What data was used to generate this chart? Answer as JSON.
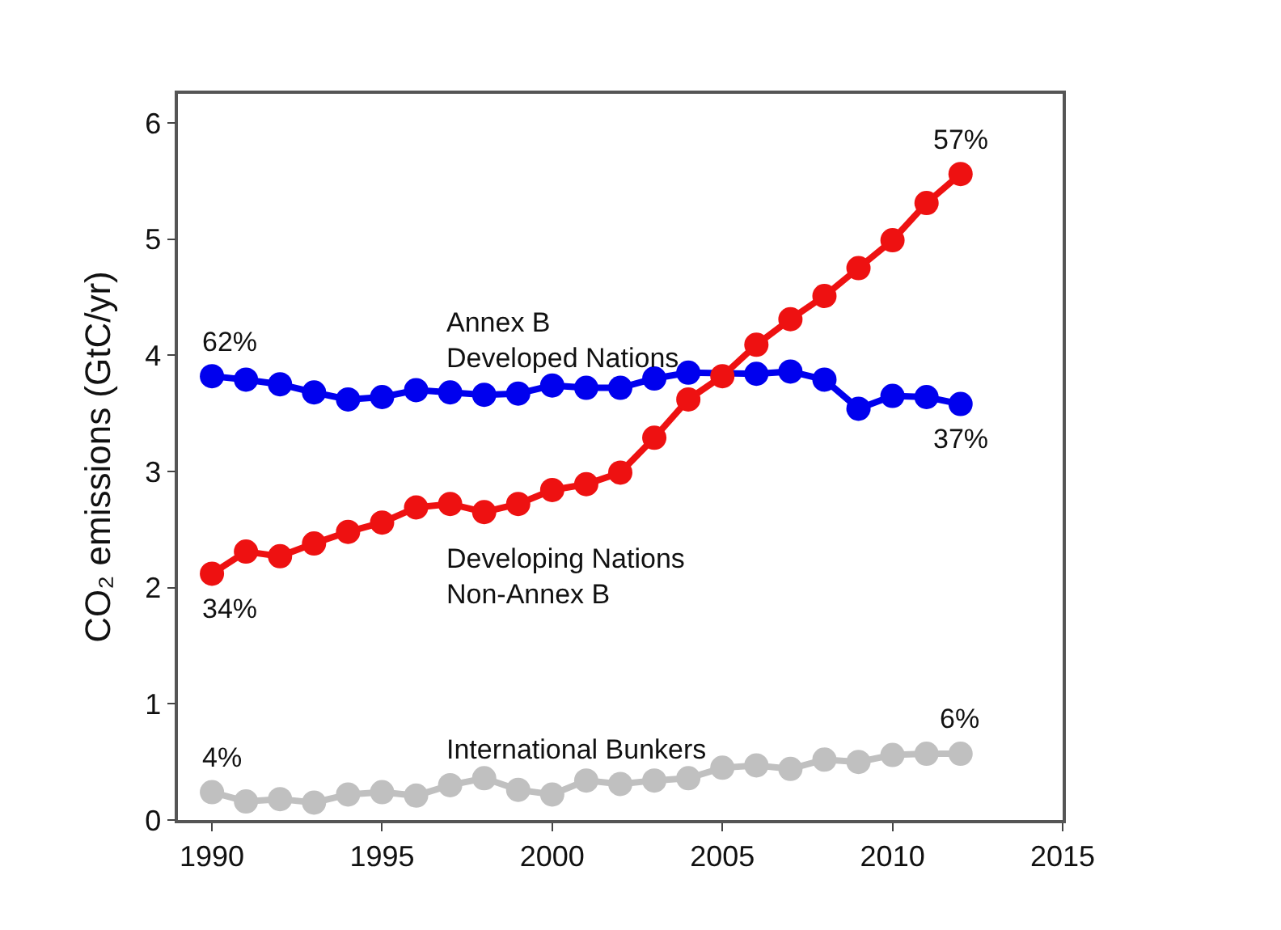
{
  "chart_data": {
    "type": "line",
    "ylabel": "CO₂ emissions (GtC/yr)",
    "x": [
      1990,
      1991,
      1992,
      1993,
      1994,
      1995,
      1996,
      1997,
      1998,
      1999,
      2000,
      2001,
      2002,
      2003,
      2004,
      2005,
      2006,
      2007,
      2008,
      2009,
      2010,
      2011,
      2012
    ],
    "series": [
      {
        "name": "Annex B\nDeveloped Nations",
        "color": "#0000ee",
        "values": [
          3.82,
          3.79,
          3.75,
          3.68,
          3.62,
          3.64,
          3.7,
          3.68,
          3.66,
          3.67,
          3.74,
          3.72,
          3.72,
          3.8,
          3.85,
          null,
          3.84,
          3.86,
          3.79,
          3.54,
          3.65,
          3.64,
          3.58
        ]
      },
      {
        "name": "Developing Nations\nNon-Annex B",
        "color": "#ee1111",
        "values": [
          2.12,
          2.31,
          2.27,
          2.38,
          2.48,
          2.56,
          2.69,
          2.72,
          2.65,
          2.72,
          2.84,
          2.89,
          2.99,
          3.29,
          3.62,
          3.82,
          4.09,
          4.31,
          4.51,
          4.75,
          4.99,
          5.31,
          5.56
        ]
      },
      {
        "name": "International Bunkers",
        "color": "#c0c0c0",
        "values": [
          0.24,
          0.16,
          0.18,
          0.15,
          0.22,
          0.24,
          0.21,
          0.3,
          0.36,
          0.26,
          0.22,
          0.34,
          0.31,
          0.34,
          0.36,
          0.45,
          0.47,
          0.44,
          0.52,
          0.5,
          0.56,
          0.57,
          0.57
        ]
      }
    ],
    "annotations": [
      "62%",
      "37%",
      "34%",
      "57%",
      "4%",
      "6%"
    ],
    "xlim": [
      1989,
      2015
    ],
    "xticks": [
      1990,
      1995,
      2000,
      2005,
      2010,
      2015
    ],
    "ylim": [
      0,
      6.25
    ],
    "yticks": [
      0,
      1,
      2,
      3,
      4,
      5,
      6
    ],
    "marker": "circle",
    "line_style": "solid"
  }
}
